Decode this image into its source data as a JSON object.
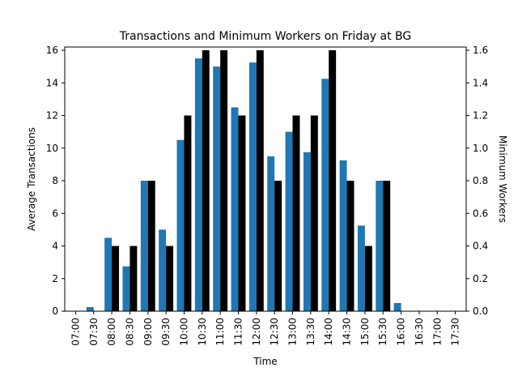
{
  "chart_data": {
    "type": "bar",
    "title": "Transactions and Minimum Workers on Friday at BG",
    "xlabel": "Time",
    "ylabel_left": "Average Transactions",
    "ylabel_right": "Minimum Workers",
    "categories": [
      "07:00",
      "07:30",
      "08:00",
      "08:30",
      "09:00",
      "09:30",
      "10:00",
      "10:30",
      "11:00",
      "11:30",
      "12:00",
      "12:30",
      "13:00",
      "13:30",
      "14:00",
      "14:30",
      "15:00",
      "15:30",
      "16:00",
      "16:30",
      "17:00",
      "17:30"
    ],
    "ylim_left": [
      0,
      16.2
    ],
    "ylim_right": [
      0,
      1.62
    ],
    "yticks_left": [
      0,
      2,
      4,
      6,
      8,
      10,
      12,
      14,
      16
    ],
    "yticks_right": [
      0.0,
      0.2,
      0.4,
      0.6,
      0.8,
      1.0,
      1.2,
      1.4,
      1.6
    ],
    "series": [
      {
        "axis": "left",
        "color": "#1f77b4",
        "values": [
          0,
          0.25,
          4.5,
          2.75,
          8.0,
          5.0,
          10.5,
          15.5,
          15.0,
          12.5,
          15.25,
          9.5,
          11.0,
          9.75,
          14.25,
          9.25,
          5.25,
          8.0,
          0.5,
          0,
          0,
          0
        ]
      },
      {
        "axis": "right",
        "color": "#000000",
        "values": [
          0,
          0,
          0.4,
          0.4,
          0.8,
          0.4,
          1.2,
          1.6,
          1.6,
          1.2,
          1.6,
          0.8,
          1.2,
          1.2,
          1.6,
          0.8,
          0.4,
          0.8,
          0,
          0,
          0,
          0
        ]
      }
    ]
  }
}
